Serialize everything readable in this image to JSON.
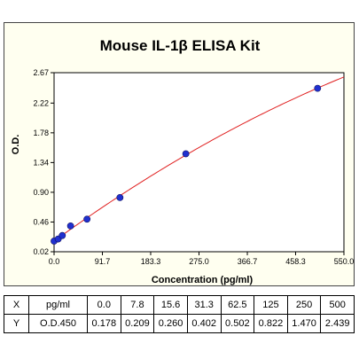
{
  "chart_data": {
    "type": "scatter",
    "title": "Mouse IL-1β ELISA Kit",
    "xlabel": "Concentration (pg/ml)",
    "ylabel": "O.D.",
    "xlim": [
      0.0,
      550.0
    ],
    "ylim": [
      0.02,
      2.67
    ],
    "x_ticks": [
      "0.0",
      "91.7",
      "183.3",
      "275.0",
      "366.7",
      "458.3",
      "550.0"
    ],
    "y_ticks": [
      "0.02",
      "0.46",
      "0.90",
      "1.34",
      "1.78",
      "2.22",
      "2.67"
    ],
    "grid": false,
    "points": [
      {
        "x": 0.0,
        "y": 0.178
      },
      {
        "x": 7.8,
        "y": 0.209
      },
      {
        "x": 15.6,
        "y": 0.26
      },
      {
        "x": 31.3,
        "y": 0.402
      },
      {
        "x": 62.5,
        "y": 0.502
      },
      {
        "x": 125,
        "y": 0.822
      },
      {
        "x": 250,
        "y": 1.47
      },
      {
        "x": 500,
        "y": 2.439
      }
    ],
    "fit_curve_color": "#e02020",
    "point_color": "#2030d0"
  },
  "table": {
    "rows": [
      [
        "X",
        "pg/ml",
        "0.0",
        "7.8",
        "15.6",
        "31.3",
        "62.5",
        "125",
        "250",
        "500"
      ],
      [
        "Y",
        "O.D.450",
        "0.178",
        "0.209",
        "0.260",
        "0.402",
        "0.502",
        "0.822",
        "1.470",
        "2.439"
      ]
    ]
  }
}
